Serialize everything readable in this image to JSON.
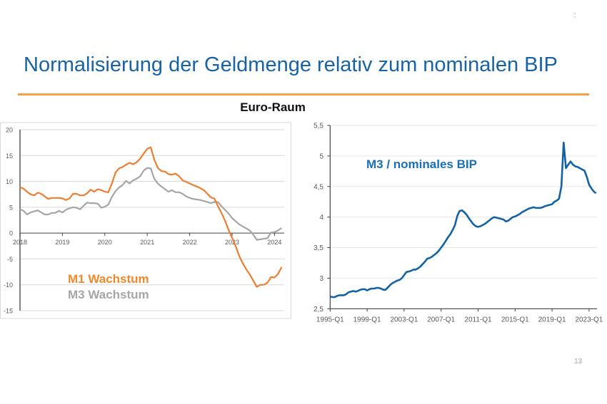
{
  "slide": {
    "title": "Normalisierung der Geldmenge relativ zum nominalen BIP",
    "subtitle": "Euro-Raum",
    "page_number": "13",
    "accent_color": "#f5a044",
    "title_color": "#1763a8"
  },
  "chart_data": [
    {
      "type": "line",
      "title": "",
      "xlabel": "",
      "ylabel": "",
      "grid": true,
      "legend_position": "bottom-left (inside plot)",
      "xlim": [
        "2018-01",
        "2024-03"
      ],
      "ylim": [
        -15,
        20
      ],
      "x_ticks": [
        "2018",
        "2019",
        "2020",
        "2021",
        "2022",
        "2023",
        "2024"
      ],
      "y_ticks": [
        20,
        15,
        10,
        5,
        0,
        -5,
        -10,
        -15
      ],
      "x": [
        "2018-01",
        "2018-02",
        "2018-03",
        "2018-04",
        "2018-05",
        "2018-06",
        "2018-07",
        "2018-08",
        "2018-09",
        "2018-10",
        "2018-11",
        "2018-12",
        "2019-01",
        "2019-02",
        "2019-03",
        "2019-04",
        "2019-05",
        "2019-06",
        "2019-07",
        "2019-08",
        "2019-09",
        "2019-10",
        "2019-11",
        "2019-12",
        "2020-01",
        "2020-02",
        "2020-03",
        "2020-04",
        "2020-05",
        "2020-06",
        "2020-07",
        "2020-08",
        "2020-09",
        "2020-10",
        "2020-11",
        "2020-12",
        "2021-01",
        "2021-02",
        "2021-03",
        "2021-04",
        "2021-05",
        "2021-06",
        "2021-07",
        "2021-08",
        "2021-09",
        "2021-10",
        "2021-11",
        "2021-12",
        "2022-01",
        "2022-02",
        "2022-03",
        "2022-04",
        "2022-05",
        "2022-06",
        "2022-07",
        "2022-08",
        "2022-09",
        "2022-10",
        "2022-11",
        "2022-12",
        "2023-01",
        "2023-02",
        "2023-03",
        "2023-04",
        "2023-05",
        "2023-06",
        "2023-07",
        "2023-08",
        "2023-09",
        "2023-10",
        "2023-11",
        "2023-12",
        "2024-01",
        "2024-02",
        "2024-03"
      ],
      "series": [
        {
          "name": "M1 Wachstum",
          "color": "#ed7d31",
          "values": [
            8.9,
            8.6,
            8.0,
            7.5,
            7.3,
            7.8,
            7.6,
            7.1,
            6.6,
            6.8,
            6.8,
            6.8,
            6.7,
            6.4,
            6.7,
            7.6,
            7.6,
            7.3,
            7.3,
            7.7,
            8.4,
            8.0,
            8.5,
            8.3,
            8.0,
            7.9,
            9.6,
            11.7,
            12.5,
            12.8,
            13.2,
            13.6,
            13.3,
            13.7,
            14.4,
            15.4,
            16.3,
            16.6,
            14.2,
            12.6,
            12.0,
            11.9,
            11.4,
            11.3,
            11.5,
            11.0,
            10.2,
            9.9,
            9.6,
            9.3,
            9.0,
            8.7,
            8.3,
            7.6,
            6.9,
            6.7,
            5.2,
            3.9,
            2.4,
            0.6,
            -0.9,
            -2.5,
            -4.4,
            -5.8,
            -7.0,
            -8.0,
            -9.2,
            -10.4,
            -10.0,
            -10.0,
            -9.6,
            -8.5,
            -8.6,
            -7.9,
            -6.6
          ]
        },
        {
          "name": "M3 Wachstum",
          "color": "#a5a5a5",
          "values": [
            4.6,
            4.3,
            3.6,
            4.0,
            4.2,
            4.4,
            4.0,
            3.6,
            3.6,
            3.9,
            3.9,
            4.3,
            4.0,
            4.5,
            4.8,
            5.0,
            4.9,
            4.6,
            5.3,
            5.9,
            5.8,
            5.8,
            5.7,
            4.9,
            5.1,
            5.5,
            7.0,
            8.1,
            8.8,
            9.3,
            10.1,
            9.6,
            10.2,
            10.5,
            11.0,
            12.1,
            12.6,
            12.5,
            10.5,
            9.6,
            9.0,
            8.5,
            8.0,
            8.3,
            7.9,
            7.9,
            7.6,
            7.1,
            6.8,
            6.6,
            6.5,
            6.4,
            6.2,
            6.0,
            5.8,
            6.0,
            6.0,
            5.2,
            4.5,
            3.8,
            2.9,
            2.3,
            1.7,
            1.3,
            0.9,
            0.5,
            -0.3,
            -1.3,
            -1.2,
            -1.1,
            -1.0,
            0.1,
            0.2,
            0.5,
            1.0
          ]
        }
      ],
      "legend": [
        {
          "label": "M1 Wachstum",
          "color": "#f0892a"
        },
        {
          "label": "M3 Wachstum",
          "color": "#a6a6a6"
        }
      ]
    },
    {
      "type": "line",
      "title": "",
      "annotation": "M3 / nominales BIP",
      "annotation_color": "#1a6fb8",
      "xlabel": "",
      "ylabel": "",
      "grid": true,
      "xlim": [
        "1995-Q1",
        "2023-Q4"
      ],
      "ylim": [
        2.5,
        5.5
      ],
      "x_ticks": [
        "1995-Q1",
        "1999-Q1",
        "2003-Q1",
        "2007-Q1",
        "2011-Q1",
        "2015-Q1",
        "2019-Q1",
        "2023-Q1"
      ],
      "y_ticks": [
        {
          "value": 5.5,
          "label": "5,5"
        },
        {
          "value": 5.0,
          "label": "5"
        },
        {
          "value": 4.5,
          "label": "4,5"
        },
        {
          "value": 4.0,
          "label": "4"
        },
        {
          "value": 3.5,
          "label": "3,5"
        },
        {
          "value": 3.0,
          "label": "3"
        },
        {
          "value": 2.5,
          "label": "2,5"
        }
      ],
      "x": [
        "1995-Q1",
        "1995-Q2",
        "1995-Q3",
        "1995-Q4",
        "1996-Q1",
        "1996-Q2",
        "1996-Q3",
        "1996-Q4",
        "1997-Q1",
        "1997-Q2",
        "1997-Q3",
        "1997-Q4",
        "1998-Q1",
        "1998-Q2",
        "1998-Q3",
        "1998-Q4",
        "1999-Q1",
        "1999-Q2",
        "1999-Q3",
        "1999-Q4",
        "2000-Q1",
        "2000-Q2",
        "2000-Q3",
        "2000-Q4",
        "2001-Q1",
        "2001-Q2",
        "2001-Q3",
        "2001-Q4",
        "2002-Q1",
        "2002-Q2",
        "2002-Q3",
        "2002-Q4",
        "2003-Q1",
        "2003-Q2",
        "2003-Q3",
        "2003-Q4",
        "2004-Q1",
        "2004-Q2",
        "2004-Q3",
        "2004-Q4",
        "2005-Q1",
        "2005-Q2",
        "2005-Q3",
        "2005-Q4",
        "2006-Q1",
        "2006-Q2",
        "2006-Q3",
        "2006-Q4",
        "2007-Q1",
        "2007-Q2",
        "2007-Q3",
        "2007-Q4",
        "2008-Q1",
        "2008-Q2",
        "2008-Q3",
        "2008-Q4",
        "2009-Q1",
        "2009-Q2",
        "2009-Q3",
        "2009-Q4",
        "2010-Q1",
        "2010-Q2",
        "2010-Q3",
        "2010-Q4",
        "2011-Q1",
        "2011-Q2",
        "2011-Q3",
        "2011-Q4",
        "2012-Q1",
        "2012-Q2",
        "2012-Q3",
        "2012-Q4",
        "2013-Q1",
        "2013-Q2",
        "2013-Q3",
        "2013-Q4",
        "2014-Q1",
        "2014-Q2",
        "2014-Q3",
        "2014-Q4",
        "2015-Q1",
        "2015-Q2",
        "2015-Q3",
        "2015-Q4",
        "2016-Q1",
        "2016-Q2",
        "2016-Q3",
        "2016-Q4",
        "2017-Q1",
        "2017-Q2",
        "2017-Q3",
        "2017-Q4",
        "2018-Q1",
        "2018-Q2",
        "2018-Q3",
        "2018-Q4",
        "2019-Q1",
        "2019-Q2",
        "2019-Q3",
        "2019-Q4",
        "2020-Q1",
        "2020-Q2",
        "2020-Q3",
        "2020-Q4",
        "2021-Q1",
        "2021-Q2",
        "2021-Q3",
        "2021-Q4",
        "2022-Q1",
        "2022-Q2",
        "2022-Q3",
        "2022-Q4",
        "2023-Q1",
        "2023-Q2",
        "2023-Q3",
        "2023-Q4"
      ],
      "series": [
        {
          "name": "M3 / nominales BIP",
          "color": "#1462a6",
          "values": [
            2.7,
            2.69,
            2.69,
            2.71,
            2.72,
            2.72,
            2.72,
            2.74,
            2.77,
            2.78,
            2.79,
            2.78,
            2.79,
            2.81,
            2.82,
            2.82,
            2.8,
            2.82,
            2.83,
            2.83,
            2.84,
            2.84,
            2.83,
            2.81,
            2.81,
            2.85,
            2.89,
            2.92,
            2.94,
            2.96,
            2.97,
            3.0,
            3.05,
            3.1,
            3.11,
            3.12,
            3.14,
            3.14,
            3.16,
            3.19,
            3.23,
            3.27,
            3.32,
            3.33,
            3.35,
            3.38,
            3.41,
            3.45,
            3.5,
            3.55,
            3.61,
            3.67,
            3.72,
            3.79,
            3.87,
            4.02,
            4.1,
            4.11,
            4.08,
            4.04,
            3.98,
            3.93,
            3.88,
            3.85,
            3.84,
            3.85,
            3.87,
            3.89,
            3.92,
            3.95,
            3.98,
            4.0,
            3.99,
            3.98,
            3.97,
            3.96,
            3.93,
            3.94,
            3.97,
            4.0,
            4.01,
            4.03,
            4.05,
            4.08,
            4.1,
            4.12,
            4.14,
            4.15,
            4.16,
            4.15,
            4.15,
            4.15,
            4.16,
            4.18,
            4.19,
            4.2,
            4.21,
            4.25,
            4.27,
            4.3,
            4.5,
            5.22,
            4.8,
            4.86,
            4.91,
            4.86,
            4.83,
            4.82,
            4.8,
            4.78,
            4.76,
            4.66,
            4.53,
            4.47,
            4.42,
            4.39
          ]
        }
      ]
    }
  ]
}
